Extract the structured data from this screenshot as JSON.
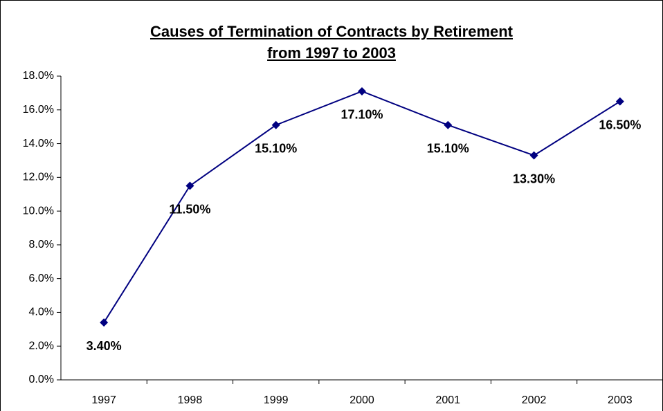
{
  "chart_data": {
    "type": "line",
    "title": "Causes of Termination of Contracts by Retirement from 1997 to 2003",
    "categories": [
      "1997",
      "1998",
      "1999",
      "2000",
      "2001",
      "2002",
      "2003"
    ],
    "values": [
      3.4,
      11.5,
      15.1,
      17.1,
      15.1,
      13.3,
      16.5
    ],
    "value_labels": [
      "3.40%",
      "11.50%",
      "15.10%",
      "17.10%",
      "15.10%",
      "13.30%",
      "16.50%"
    ],
    "color": "#000080",
    "ylim": [
      0,
      18
    ],
    "yticks": [
      {
        "value": 0,
        "label": "0.0%"
      },
      {
        "value": 2,
        "label": "2.0%"
      },
      {
        "value": 4,
        "label": "4.0%"
      },
      {
        "value": 6,
        "label": "6.0%"
      },
      {
        "value": 8,
        "label": "8.0%"
      },
      {
        "value": 10,
        "label": "10.0%"
      },
      {
        "value": 12,
        "label": "12.0%"
      },
      {
        "value": 14,
        "label": "14.0%"
      },
      {
        "value": 16,
        "label": "16.0%"
      },
      {
        "value": 18,
        "label": "18.0%"
      }
    ],
    "grid": false
  }
}
